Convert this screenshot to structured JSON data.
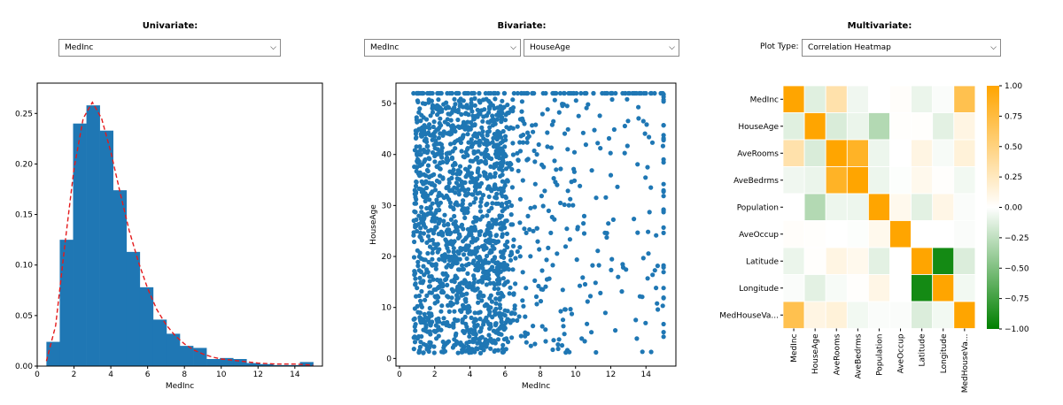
{
  "univariate": {
    "title": "Univariate:",
    "dropdown": {
      "selected": "MedInc",
      "arrow_icon": "chevron-down-icon"
    }
  },
  "bivariate": {
    "title": "Bivariate:",
    "dropdown_x": {
      "selected": "MedInc",
      "arrow_icon": "chevron-down-icon"
    },
    "dropdown_y": {
      "selected": "HouseAge",
      "arrow_icon": "chevron-down-icon"
    }
  },
  "multivariate": {
    "title": "Multivariate:",
    "plot_type_label": "Plot Type:",
    "dropdown": {
      "selected": "Correlation Heatmap",
      "arrow_icon": "chevron-down-icon"
    }
  },
  "chart_data": [
    {
      "type": "bar",
      "subtype": "histogram_with_kde",
      "xlabel": "MedInc",
      "ylabel": "",
      "xlim": [
        0,
        15.5
      ],
      "ylim": [
        0,
        0.28
      ],
      "xticks": [
        0,
        2,
        4,
        6,
        8,
        10,
        12,
        14
      ],
      "yticks": [
        0.0,
        0.05,
        0.1,
        0.15,
        0.2,
        0.25
      ],
      "ytick_labels": [
        "0.00",
        "0.05",
        "0.10",
        "0.15",
        "0.20",
        "0.25"
      ],
      "bin_edges": [
        0.5,
        1.225,
        1.95,
        2.675,
        3.4,
        4.125,
        4.85,
        5.575,
        6.3,
        7.025,
        7.75,
        8.475,
        9.2,
        9.925,
        10.65,
        11.375,
        12.1,
        12.825,
        13.55,
        14.275,
        15.0
      ],
      "values": [
        0.024,
        0.125,
        0.24,
        0.258,
        0.233,
        0.174,
        0.113,
        0.078,
        0.046,
        0.032,
        0.02,
        0.018,
        0.007,
        0.008,
        0.007,
        0.003,
        0.002,
        0.001,
        0.001,
        0.004
      ],
      "bar_color": "#1f77b4",
      "kde": {
        "style": "dashed",
        "color": "#e41a1c",
        "x": [
          0.5,
          1.0,
          1.5,
          2.0,
          2.5,
          3.0,
          3.5,
          4.0,
          4.5,
          5.0,
          5.5,
          6.0,
          6.5,
          7.0,
          7.5,
          8.0,
          8.5,
          9.0,
          9.5,
          10.0,
          10.5,
          11.0,
          12.0,
          13.0,
          14.0,
          15.0
        ],
        "y": [
          0.005,
          0.04,
          0.12,
          0.195,
          0.245,
          0.261,
          0.245,
          0.212,
          0.172,
          0.134,
          0.103,
          0.077,
          0.056,
          0.041,
          0.03,
          0.022,
          0.016,
          0.012,
          0.009,
          0.007,
          0.006,
          0.005,
          0.003,
          0.002,
          0.002,
          0.001
        ]
      }
    },
    {
      "type": "scatter",
      "xlabel": "MedInc",
      "ylabel": "HouseAge",
      "xlim": [
        -0.2,
        15.7
      ],
      "ylim": [
        -1.5,
        54
      ],
      "xticks": [
        0,
        2,
        4,
        6,
        8,
        10,
        12,
        14
      ],
      "yticks": [
        0,
        10,
        20,
        30,
        40,
        50
      ],
      "point_color": "#1f77b4",
      "x_range": [
        0.5,
        15.0
      ],
      "y_range": [
        1,
        52
      ],
      "dense_region_x": [
        0.8,
        6.0
      ],
      "cap_line_y": 52
    },
    {
      "type": "heatmap",
      "rows": [
        "MedInc",
        "HouseAge",
        "AveRooms",
        "AveBedrms",
        "Population",
        "AveOccup",
        "Latitude",
        "Longitude",
        "MedHouseVa..."
      ],
      "columns": [
        "MedInc",
        "HouseAge",
        "AveRooms",
        "AveBedrms",
        "Population",
        "AveOccup",
        "Latitude",
        "Longitude",
        "MedHouseVa..."
      ],
      "values": [
        [
          1.0,
          -0.12,
          0.33,
          -0.06,
          0.0,
          0.02,
          -0.08,
          -0.02,
          0.69
        ],
        [
          -0.12,
          1.0,
          -0.15,
          -0.08,
          -0.3,
          0.01,
          0.01,
          -0.11,
          0.11
        ],
        [
          0.33,
          -0.15,
          1.0,
          0.85,
          -0.07,
          0.0,
          0.11,
          -0.03,
          0.15
        ],
        [
          -0.06,
          -0.08,
          0.85,
          1.0,
          -0.07,
          -0.01,
          0.07,
          0.01,
          -0.05
        ],
        [
          0.0,
          -0.3,
          -0.07,
          -0.07,
          1.0,
          0.07,
          -0.11,
          0.1,
          -0.02
        ],
        [
          0.02,
          0.01,
          0.0,
          -0.01,
          0.07,
          1.0,
          0.0,
          0.0,
          -0.02
        ],
        [
          -0.08,
          0.01,
          0.11,
          0.07,
          -0.11,
          0.0,
          1.0,
          -0.92,
          -0.14
        ],
        [
          -0.02,
          -0.11,
          -0.03,
          0.01,
          0.1,
          0.0,
          -0.92,
          1.0,
          -0.05
        ],
        [
          0.69,
          0.11,
          0.15,
          -0.05,
          -0.02,
          -0.02,
          -0.14,
          -0.05,
          1.0
        ]
      ],
      "colorbar": {
        "vmin": -1.0,
        "vmax": 1.0,
        "ticks": [
          1.0,
          0.75,
          0.5,
          0.25,
          0.0,
          -0.25,
          -0.5,
          -0.75,
          -1.0
        ],
        "tick_labels": [
          "1.00",
          "0.75",
          "0.50",
          "0.25",
          "0.00",
          "−0.25",
          "−0.50",
          "−0.75",
          "−1.00"
        ],
        "high_color": "#ffa500",
        "mid_color": "#ffffff",
        "low_color": "#008000"
      }
    }
  ]
}
